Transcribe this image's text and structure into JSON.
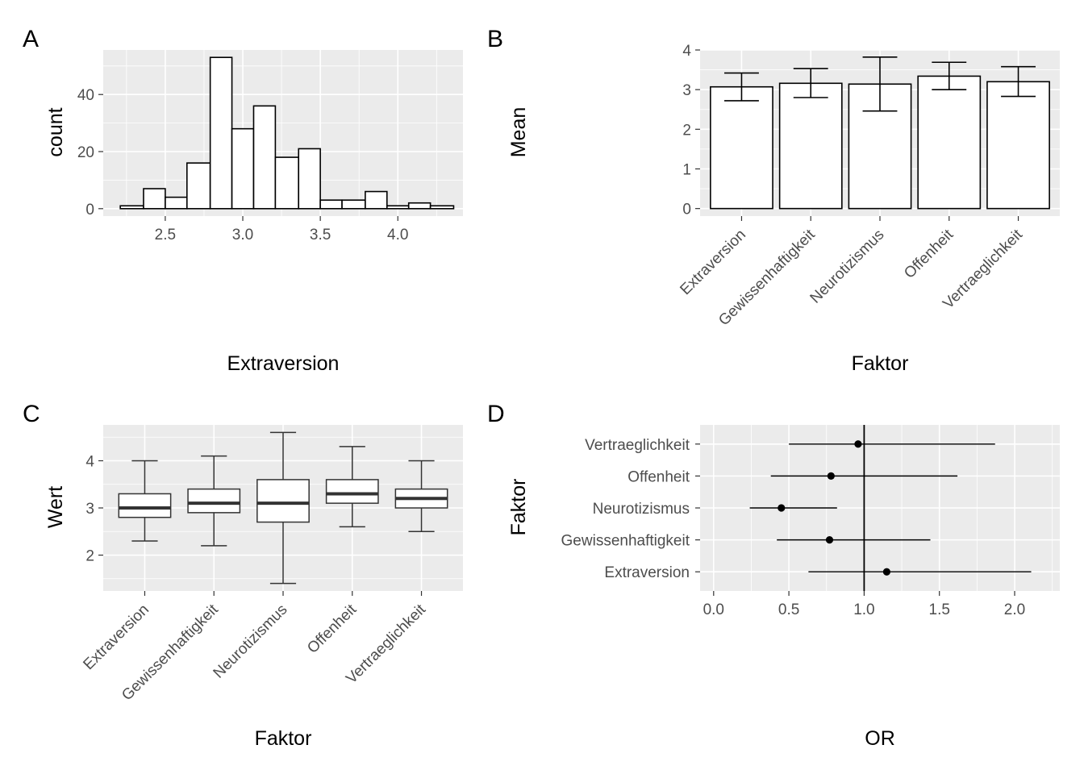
{
  "chart_data": [
    {
      "tag": "A",
      "type": "bar",
      "subtype": "histogram",
      "xlabel": "Extraversion",
      "ylabel": "count",
      "xlim": [
        2.1,
        4.42
      ],
      "ylim": [
        -2.6,
        55.6
      ],
      "x_ticks": [
        2.5,
        3.0,
        3.5,
        4.0
      ],
      "x_tick_labels": [
        "2.5",
        "3.0",
        "3.5",
        "4.0"
      ],
      "y_ticks": [
        0,
        20,
        40
      ],
      "y_tick_labels": [
        "0",
        "20",
        "40"
      ],
      "bins": [
        {
          "x0": 2.21,
          "x1": 2.36,
          "count": 1
        },
        {
          "x0": 2.36,
          "x1": 2.5,
          "count": 7
        },
        {
          "x0": 2.5,
          "x1": 2.64,
          "count": 4
        },
        {
          "x0": 2.64,
          "x1": 2.79,
          "count": 16
        },
        {
          "x0": 2.79,
          "x1": 2.93,
          "count": 53
        },
        {
          "x0": 2.93,
          "x1": 3.07,
          "count": 28
        },
        {
          "x0": 3.07,
          "x1": 3.21,
          "count": 36
        },
        {
          "x0": 3.21,
          "x1": 3.36,
          "count": 18
        },
        {
          "x0": 3.36,
          "x1": 3.5,
          "count": 21
        },
        {
          "x0": 3.5,
          "x1": 3.64,
          "count": 3
        },
        {
          "x0": 3.64,
          "x1": 3.79,
          "count": 3
        },
        {
          "x0": 3.79,
          "x1": 3.93,
          "count": 6
        },
        {
          "x0": 3.93,
          "x1": 4.07,
          "count": 1
        },
        {
          "x0": 4.07,
          "x1": 4.21,
          "count": 2
        },
        {
          "x0": 4.21,
          "x1": 4.36,
          "count": 1
        }
      ],
      "grid": true
    },
    {
      "tag": "B",
      "type": "bar",
      "subtype": "bar-with-errorbars",
      "xlabel": "Faktor",
      "ylabel": "Mean",
      "ylim": [
        -0.19,
        4.0
      ],
      "y_ticks": [
        0,
        1,
        2,
        3,
        4
      ],
      "y_tick_labels": [
        "0",
        "1",
        "2",
        "3",
        "4"
      ],
      "categories": [
        "Extraversion",
        "Gewissenhaftigkeit",
        "Neurotizismus",
        "Offenheit",
        "Vertraeglichkeit"
      ],
      "values": [
        3.07,
        3.16,
        3.14,
        3.34,
        3.2
      ],
      "err_low": [
        2.72,
        2.8,
        2.46,
        3.0,
        2.83
      ],
      "err_high": [
        3.42,
        3.53,
        3.82,
        3.69,
        3.58
      ],
      "grid": true
    },
    {
      "tag": "C",
      "type": "boxplot",
      "xlabel": "Faktor",
      "ylabel": "Wert",
      "ylim": [
        1.24,
        4.76
      ],
      "y_ticks": [
        2,
        3,
        4
      ],
      "y_tick_labels": [
        "2",
        "3",
        "4"
      ],
      "categories": [
        "Extraversion",
        "Gewissenhaftigkeit",
        "Neurotizismus",
        "Offenheit",
        "Vertraeglichkeit"
      ],
      "boxes": [
        {
          "min": 2.3,
          "q1": 2.8,
          "median": 3.0,
          "q3": 3.3,
          "max": 4.0
        },
        {
          "min": 2.2,
          "q1": 2.9,
          "median": 3.1,
          "q3": 3.4,
          "max": 4.1
        },
        {
          "min": 1.4,
          "q1": 2.7,
          "median": 3.1,
          "q3": 3.6,
          "max": 4.6
        },
        {
          "min": 2.6,
          "q1": 3.1,
          "median": 3.3,
          "q3": 3.6,
          "max": 4.3
        },
        {
          "min": 2.5,
          "q1": 3.0,
          "median": 3.2,
          "q3": 3.4,
          "max": 4.0
        }
      ],
      "grid": true
    },
    {
      "tag": "D",
      "type": "scatter",
      "subtype": "forest-plot",
      "xlabel": "OR",
      "ylabel": "Faktor",
      "xlim": [
        -0.09,
        2.3
      ],
      "x_ticks": [
        0.0,
        0.5,
        1.0,
        1.5,
        2.0
      ],
      "x_tick_labels": [
        "0.0",
        "0.5",
        "1.0",
        "1.5",
        "2.0"
      ],
      "reference_line_x": 1.0,
      "categories": [
        "Extraversion",
        "Gewissenhaftigkeit",
        "Neurotizismus",
        "Offenheit",
        "Vertraeglichkeit"
      ],
      "estimates": [
        1.15,
        0.77,
        0.45,
        0.78,
        0.96
      ],
      "ci_low": [
        0.63,
        0.42,
        0.24,
        0.38,
        0.5
      ],
      "ci_high": [
        2.11,
        1.44,
        0.82,
        1.62,
        1.87
      ],
      "grid": true
    }
  ]
}
